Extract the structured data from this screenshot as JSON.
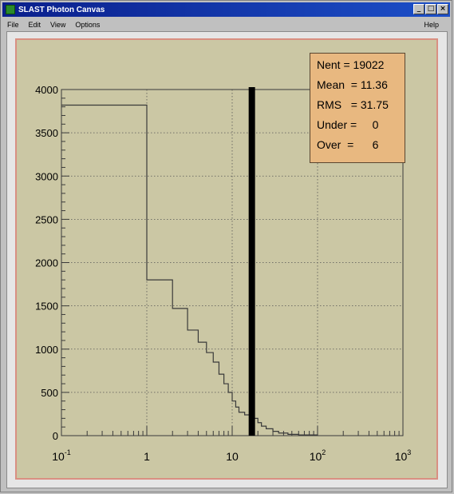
{
  "window": {
    "title": "SLAST Photon Canvas",
    "buttons": [
      "_",
      "□",
      "×"
    ]
  },
  "menu": {
    "items": [
      "File",
      "Edit",
      "View",
      "Options"
    ],
    "help": "Help"
  },
  "stats": {
    "rows": [
      {
        "label": "Nent = ",
        "value": "19022"
      },
      {
        "label": "Mean  = ",
        "value": "11.36"
      },
      {
        "label": "RMS   = ",
        "value": "31.75"
      },
      {
        "label": "Under = ",
        "value": "    0"
      },
      {
        "label": "Over  = ",
        "value": "     6"
      }
    ]
  },
  "chart_data": {
    "type": "bar",
    "subtype": "histogram-step",
    "x_scale": "log",
    "xlim": [
      0.1,
      1000
    ],
    "ylim": [
      0,
      4000
    ],
    "grid": true,
    "x_ticks": [
      {
        "base": "10",
        "exp": "-1",
        "value": 0.1
      },
      {
        "base": "1",
        "exp": "",
        "value": 1
      },
      {
        "base": "10",
        "exp": "",
        "value": 10
      },
      {
        "base": "10",
        "exp": "2",
        "value": 100
      },
      {
        "base": "10",
        "exp": "3",
        "value": 1000
      }
    ],
    "y_ticks": [
      "0",
      "500",
      "1000",
      "1500",
      "2000",
      "2500",
      "3000",
      "3500",
      "4000"
    ],
    "bins": [
      {
        "x0": 0.1,
        "x1": 1,
        "y": 3820
      },
      {
        "x0": 1,
        "x1": 2,
        "y": 1800
      },
      {
        "x0": 2,
        "x1": 3,
        "y": 1470
      },
      {
        "x0": 3,
        "x1": 4,
        "y": 1220
      },
      {
        "x0": 4,
        "x1": 5,
        "y": 1080
      },
      {
        "x0": 5,
        "x1": 6,
        "y": 960
      },
      {
        "x0": 6,
        "x1": 7,
        "y": 850
      },
      {
        "x0": 7,
        "x1": 8,
        "y": 710
      },
      {
        "x0": 8,
        "x1": 9,
        "y": 600
      },
      {
        "x0": 9,
        "x1": 10,
        "y": 500
      },
      {
        "x0": 10,
        "x1": 11,
        "y": 400
      },
      {
        "x0": 11,
        "x1": 12,
        "y": 330
      },
      {
        "x0": 12,
        "x1": 14,
        "y": 270
      },
      {
        "x0": 14,
        "x1": 16,
        "y": 240
      },
      {
        "x0": 16,
        "x1": 18,
        "y": 160
      },
      {
        "x0": 18,
        "x1": 20,
        "y": 200
      },
      {
        "x0": 20,
        "x1": 22,
        "y": 150
      },
      {
        "x0": 22,
        "x1": 25,
        "y": 110
      },
      {
        "x0": 25,
        "x1": 30,
        "y": 80
      },
      {
        "x0": 30,
        "x1": 35,
        "y": 50
      },
      {
        "x0": 35,
        "x1": 45,
        "y": 30
      },
      {
        "x0": 45,
        "x1": 60,
        "y": 15
      },
      {
        "x0": 60,
        "x1": 100,
        "y": 8
      }
    ],
    "marker_x": 17,
    "colors": {
      "pad": "#cbc7a4",
      "line": "#3a3a3a",
      "marker": "#000000",
      "stats_box": "#e8b880",
      "frame": "#d98f82"
    }
  }
}
